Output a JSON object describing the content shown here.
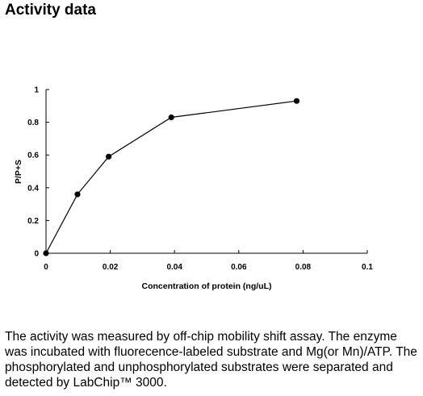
{
  "heading": "Activity data",
  "chart_data": {
    "type": "line",
    "title": "",
    "xlabel": "Concentration of protein (ng/uL)",
    "ylabel": "P/P+S",
    "xlim": [
      0,
      0.1
    ],
    "ylim": [
      0,
      1
    ],
    "x_ticks": [
      "0",
      "0.02",
      "0.04",
      "0.06",
      "0.08",
      "0.1"
    ],
    "y_ticks": [
      "0",
      "0.2",
      "0.4",
      "0.6",
      "0.8",
      "1"
    ],
    "grid": false,
    "series": [
      {
        "x": [
          0,
          0.0098,
          0.0195,
          0.039,
          0.078
        ],
        "y": [
          0,
          0.36,
          0.59,
          0.83,
          0.93
        ]
      }
    ],
    "line_color": "#000000"
  },
  "description": "The activity was measured by off-chip mobility shift assay. The enzyme was incubated with fluorecence-labeled  substrate and Mg(or Mn)/ATP. The phosphorylated and unphosphorylated substrates were separated and detected by LabChip™ 3000."
}
